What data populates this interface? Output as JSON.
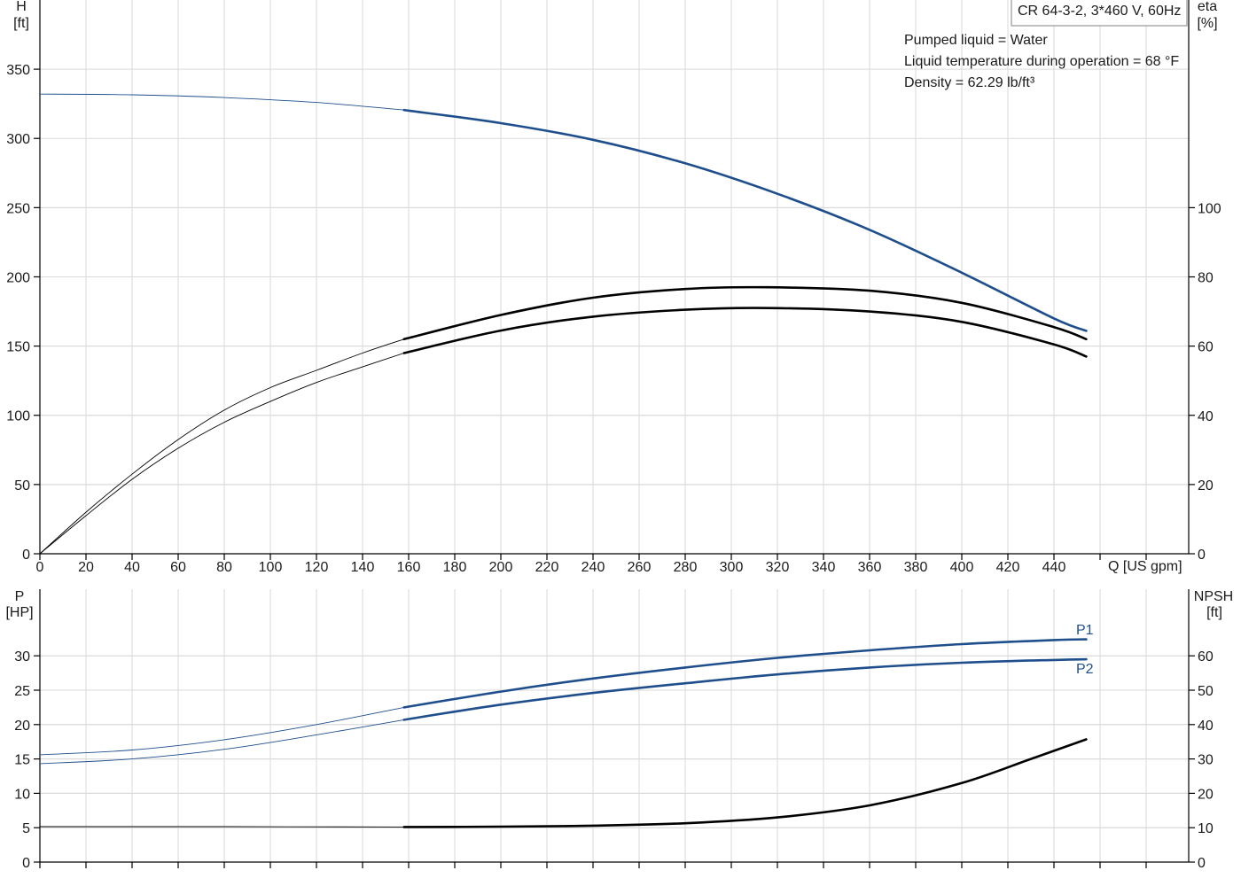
{
  "info": {
    "model": "CR 64-3-2, 3*460 V, 60Hz",
    "lines": [
      "Pumped liquid = Water",
      "Liquid temperature during operation = 68 °F",
      "Density = 62.29 lb/ft³"
    ]
  },
  "colors": {
    "blue": "#1f4e8c",
    "black": "#000000",
    "grid": "#d9d9d9"
  },
  "chart_data": [
    {
      "type": "line",
      "name_axis": "top",
      "xlabel": "Q [US gpm]",
      "xlim": [
        0,
        460
      ],
      "xticks": [
        0,
        20,
        40,
        60,
        80,
        100,
        120,
        140,
        160,
        180,
        200,
        220,
        240,
        260,
        280,
        300,
        320,
        340,
        360,
        380,
        400,
        420,
        440
      ],
      "y_left": {
        "label_top": "H",
        "label_unit": "[ft]",
        "ylim": [
          0,
          350
        ],
        "ticks": [
          0,
          50,
          100,
          150,
          200,
          250,
          300,
          350
        ]
      },
      "y_right": {
        "label_top": "eta",
        "label_unit": "[%]",
        "ylim": [
          0,
          140
        ],
        "ticks": [
          0,
          20,
          40,
          60,
          80,
          100
        ]
      },
      "grid": true,
      "series": [
        {
          "id": "H",
          "axis": "left",
          "color": "#1f4e8c",
          "thin_until": 158,
          "x": [
            0,
            40,
            80,
            120,
            158,
            200,
            240,
            280,
            320,
            360,
            400,
            440,
            454
          ],
          "y": [
            332,
            331.5,
            329.5,
            326,
            320.5,
            311,
            299,
            282,
            260,
            234,
            203,
            170,
            161
          ]
        },
        {
          "id": "eta_pump",
          "axis": "right",
          "color": "#000000",
          "thin_until": 158,
          "x": [
            0,
            20,
            40,
            60,
            80,
            100,
            120,
            140,
            158,
            200,
            240,
            280,
            316,
            360,
            400,
            440,
            454
          ],
          "y": [
            0,
            11,
            21.5,
            30.5,
            38,
            44,
            49.5,
            54,
            58,
            64.5,
            68.5,
            70.5,
            71,
            70,
            67,
            60.5,
            57
          ]
        },
        {
          "id": "eta_total",
          "axis": "right",
          "color": "#000000",
          "thin_until": 158,
          "x": [
            0,
            20,
            40,
            60,
            80,
            100,
            120,
            140,
            158,
            200,
            240,
            280,
            316,
            360,
            400,
            440,
            454
          ],
          "y": [
            0,
            12,
            23,
            33,
            41.5,
            48,
            53,
            58,
            62,
            69,
            74,
            76.5,
            77,
            76,
            72.5,
            65.5,
            62
          ]
        }
      ]
    },
    {
      "type": "line",
      "name_axis": "bottom",
      "xlim": [
        0,
        460
      ],
      "y_left": {
        "label_top": "P",
        "label_unit": "[HP]",
        "ylim": [
          0,
          35
        ],
        "ticks": [
          0,
          5,
          10,
          15,
          20,
          25,
          30
        ]
      },
      "y_right": {
        "label_top": "NPSH",
        "label_unit": "[ft]",
        "ylim": [
          0,
          70
        ],
        "ticks": [
          0,
          10,
          20,
          30,
          40,
          50,
          60
        ]
      },
      "grid": true,
      "series": [
        {
          "id": "P1",
          "name": "P1",
          "axis": "left",
          "color": "#1f4e8c",
          "thin_until": 158,
          "x": [
            0,
            40,
            80,
            120,
            158,
            200,
            240,
            280,
            320,
            360,
            400,
            440,
            454
          ],
          "y": [
            15.6,
            16.3,
            17.8,
            20.0,
            22.5,
            24.8,
            26.7,
            28.3,
            29.7,
            30.8,
            31.7,
            32.3,
            32.4
          ]
        },
        {
          "id": "P2",
          "name": "P2",
          "axis": "left",
          "color": "#1f4e8c",
          "thin_until": 158,
          "x": [
            0,
            40,
            80,
            120,
            158,
            200,
            240,
            280,
            320,
            360,
            400,
            440,
            454
          ],
          "y": [
            14.3,
            15.0,
            16.4,
            18.5,
            20.7,
            22.9,
            24.6,
            26.0,
            27.3,
            28.3,
            29.0,
            29.4,
            29.5
          ]
        },
        {
          "id": "NPSH",
          "axis": "right",
          "color": "#000000",
          "thin_until": 158,
          "x": [
            0,
            80,
            158,
            200,
            240,
            280,
            320,
            360,
            400,
            430,
            454
          ],
          "y": [
            10.3,
            10.3,
            10.2,
            10.3,
            10.6,
            11.3,
            13.0,
            16.5,
            23.0,
            30.0,
            35.7
          ]
        }
      ]
    }
  ]
}
